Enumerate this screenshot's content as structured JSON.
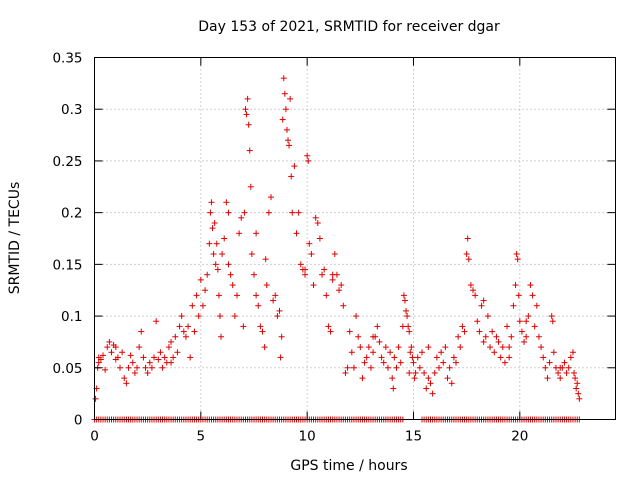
{
  "chart_data": {
    "type": "scatter",
    "title": "Day 153 of 2021, SRMTID for receiver dgar",
    "xlabel": "GPS time / hours",
    "ylabel": "SRMTID / TECUs",
    "xlim": [
      0,
      24.5
    ],
    "ylim": [
      0,
      0.35
    ],
    "grid": true,
    "marker": "plus",
    "color": "#e00000",
    "x_ticks": [
      0,
      5,
      10,
      15,
      20
    ],
    "y_ticks": [
      0,
      0.05,
      0.1,
      0.15,
      0.2,
      0.25,
      0.3,
      0.35
    ],
    "x_tick_labels": [
      "0",
      "5",
      "10",
      "15",
      "20"
    ],
    "y_tick_labels": [
      "0",
      "0.05",
      "0.1",
      "0.15",
      "0.2",
      "0.25",
      "0.3",
      "0.35"
    ],
    "zero_band": {
      "start": 0,
      "end": 22.8,
      "gap": [
        14.5,
        15.3
      ],
      "step": 0.1,
      "value": 0
    },
    "series": [
      {
        "name": "SRMTID",
        "points": [
          [
            0.05,
            0.02
          ],
          [
            0.1,
            0.03
          ],
          [
            0.15,
            0.05
          ],
          [
            0.2,
            0.06
          ],
          [
            0.3,
            0.058
          ],
          [
            0.4,
            0.062
          ],
          [
            0.5,
            0.048
          ],
          [
            0.6,
            0.07
          ],
          [
            0.7,
            0.075
          ],
          [
            0.8,
            0.065
          ],
          [
            0.9,
            0.072
          ],
          [
            1.0,
            0.058
          ],
          [
            1.1,
            0.06
          ],
          [
            1.2,
            0.05
          ],
          [
            1.3,
            0.065
          ],
          [
            1.4,
            0.04
          ],
          [
            1.5,
            0.035
          ],
          [
            1.6,
            0.05
          ],
          [
            1.7,
            0.062
          ],
          [
            1.8,
            0.055
          ],
          [
            1.9,
            0.045
          ],
          [
            2.0,
            0.05
          ],
          [
            2.1,
            0.07
          ],
          [
            2.2,
            0.085
          ],
          [
            2.3,
            0.06
          ],
          [
            2.4,
            0.05
          ],
          [
            2.5,
            0.045
          ],
          [
            2.6,
            0.055
          ],
          [
            2.7,
            0.05
          ],
          [
            2.8,
            0.06
          ],
          [
            2.9,
            0.095
          ],
          [
            3.0,
            0.058
          ],
          [
            3.1,
            0.065
          ],
          [
            3.2,
            0.05
          ],
          [
            3.3,
            0.06
          ],
          [
            3.4,
            0.055
          ],
          [
            3.5,
            0.07
          ],
          [
            3.6,
            0.075
          ],
          [
            3.7,
            0.06
          ],
          [
            3.8,
            0.08
          ],
          [
            3.9,
            0.065
          ],
          [
            4.0,
            0.09
          ],
          [
            4.1,
            0.1
          ],
          [
            4.2,
            0.085
          ],
          [
            4.3,
            0.08
          ],
          [
            4.4,
            0.09
          ],
          [
            4.5,
            0.06
          ],
          [
            4.6,
            0.11
          ],
          [
            4.7,
            0.085
          ],
          [
            4.8,
            0.12
          ],
          [
            4.9,
            0.1
          ],
          [
            5.0,
            0.135
          ],
          [
            5.1,
            0.11
          ],
          [
            5.2,
            0.125
          ],
          [
            5.3,
            0.14
          ],
          [
            5.4,
            0.17
          ],
          [
            5.45,
            0.2
          ],
          [
            5.5,
            0.21
          ],
          [
            5.55,
            0.185
          ],
          [
            5.6,
            0.16
          ],
          [
            5.65,
            0.19
          ],
          [
            5.7,
            0.15
          ],
          [
            5.75,
            0.17
          ],
          [
            5.8,
            0.145
          ],
          [
            5.85,
            0.12
          ],
          [
            5.9,
            0.1
          ],
          [
            5.95,
            0.08
          ],
          [
            6.0,
            0.16
          ],
          [
            6.1,
            0.175
          ],
          [
            6.2,
            0.21
          ],
          [
            6.3,
            0.15
          ],
          [
            6.4,
            0.14
          ],
          [
            6.5,
            0.13
          ],
          [
            6.6,
            0.1
          ],
          [
            6.7,
            0.12
          ],
          [
            6.8,
            0.18
          ],
          [
            6.9,
            0.195
          ],
          [
            7.0,
            0.09
          ],
          [
            7.05,
            0.2
          ],
          [
            7.1,
            0.3
          ],
          [
            7.15,
            0.295
          ],
          [
            7.2,
            0.31
          ],
          [
            7.25,
            0.285
          ],
          [
            7.3,
            0.26
          ],
          [
            7.35,
            0.225
          ],
          [
            7.4,
            0.16
          ],
          [
            7.5,
            0.14
          ],
          [
            7.6,
            0.12
          ],
          [
            7.7,
            0.11
          ],
          [
            7.8,
            0.09
          ],
          [
            7.9,
            0.085
          ],
          [
            8.0,
            0.07
          ],
          [
            8.05,
            0.155
          ],
          [
            8.1,
            0.13
          ],
          [
            8.2,
            0.2
          ],
          [
            8.3,
            0.215
          ],
          [
            8.4,
            0.115
          ],
          [
            8.5,
            0.12
          ],
          [
            8.6,
            0.1
          ],
          [
            8.7,
            0.105
          ],
          [
            8.75,
            0.06
          ],
          [
            8.8,
            0.08
          ],
          [
            8.85,
            0.29
          ],
          [
            8.9,
            0.33
          ],
          [
            8.95,
            0.315
          ],
          [
            9.0,
            0.3
          ],
          [
            9.05,
            0.28
          ],
          [
            9.1,
            0.27
          ],
          [
            9.15,
            0.265
          ],
          [
            9.2,
            0.31
          ],
          [
            9.25,
            0.235
          ],
          [
            9.3,
            0.2
          ],
          [
            9.4,
            0.245
          ],
          [
            9.5,
            0.18
          ],
          [
            9.6,
            0.2
          ],
          [
            9.7,
            0.15
          ],
          [
            9.8,
            0.145
          ],
          [
            9.9,
            0.14
          ],
          [
            10.0,
            0.255
          ],
          [
            10.05,
            0.25
          ],
          [
            10.1,
            0.17
          ],
          [
            10.2,
            0.16
          ],
          [
            10.3,
            0.13
          ],
          [
            10.4,
            0.195
          ],
          [
            10.5,
            0.19
          ],
          [
            10.6,
            0.175
          ],
          [
            10.7,
            0.14
          ],
          [
            10.8,
            0.145
          ],
          [
            10.9,
            0.12
          ],
          [
            11.0,
            0.09
          ],
          [
            11.1,
            0.085
          ],
          [
            11.2,
            0.135
          ],
          [
            11.3,
            0.16
          ],
          [
            11.4,
            0.14
          ],
          [
            11.5,
            0.125
          ],
          [
            11.6,
            0.13
          ],
          [
            11.7,
            0.11
          ],
          [
            11.8,
            0.045
          ],
          [
            11.9,
            0.05
          ],
          [
            12.0,
            0.085
          ],
          [
            12.1,
            0.065
          ],
          [
            12.2,
            0.05
          ],
          [
            12.3,
            0.1
          ],
          [
            12.4,
            0.08
          ],
          [
            12.5,
            0.07
          ],
          [
            12.6,
            0.04
          ],
          [
            12.7,
            0.055
          ],
          [
            12.8,
            0.06
          ],
          [
            12.9,
            0.07
          ],
          [
            13.0,
            0.05
          ],
          [
            13.1,
            0.065
          ],
          [
            13.2,
            0.08
          ],
          [
            13.3,
            0.09
          ],
          [
            13.4,
            0.075
          ],
          [
            13.5,
            0.06
          ],
          [
            13.6,
            0.055
          ],
          [
            13.7,
            0.07
          ],
          [
            13.8,
            0.05
          ],
          [
            13.9,
            0.065
          ],
          [
            14.0,
            0.04
          ],
          [
            14.05,
            0.03
          ],
          [
            14.1,
            0.06
          ],
          [
            14.2,
            0.05
          ],
          [
            14.3,
            0.07
          ],
          [
            14.4,
            0.055
          ],
          [
            14.5,
            0.09
          ],
          [
            14.55,
            0.12
          ],
          [
            14.6,
            0.115
          ],
          [
            14.65,
            0.105
          ],
          [
            14.7,
            0.1
          ],
          [
            14.75,
            0.09
          ],
          [
            14.8,
            0.085
          ],
          [
            14.85,
            0.065
          ],
          [
            14.9,
            0.07
          ],
          [
            14.95,
            0.06
          ],
          [
            15.0,
            0.055
          ],
          [
            15.05,
            0.04
          ],
          [
            15.1,
            0.045
          ],
          [
            15.2,
            0.06
          ],
          [
            15.3,
            0.05
          ],
          [
            15.4,
            0.065
          ],
          [
            15.5,
            0.045
          ],
          [
            15.6,
            0.03
          ],
          [
            15.7,
            0.04
          ],
          [
            15.8,
            0.035
          ],
          [
            15.9,
            0.025
          ],
          [
            16.0,
            0.045
          ],
          [
            16.1,
            0.06
          ],
          [
            16.2,
            0.05
          ],
          [
            16.3,
            0.065
          ],
          [
            16.4,
            0.055
          ],
          [
            16.5,
            0.07
          ],
          [
            16.6,
            0.04
          ],
          [
            16.7,
            0.05
          ],
          [
            16.8,
            0.035
          ],
          [
            16.9,
            0.06
          ],
          [
            17.0,
            0.055
          ],
          [
            17.1,
            0.08
          ],
          [
            17.2,
            0.07
          ],
          [
            17.3,
            0.09
          ],
          [
            17.4,
            0.085
          ],
          [
            17.5,
            0.16
          ],
          [
            17.55,
            0.175
          ],
          [
            17.6,
            0.155
          ],
          [
            17.7,
            0.13
          ],
          [
            17.8,
            0.125
          ],
          [
            17.9,
            0.12
          ],
          [
            18.0,
            0.095
          ],
          [
            18.1,
            0.085
          ],
          [
            18.2,
            0.11
          ],
          [
            18.3,
            0.075
          ],
          [
            18.4,
            0.08
          ],
          [
            18.5,
            0.1
          ],
          [
            18.6,
            0.07
          ],
          [
            18.7,
            0.085
          ],
          [
            18.8,
            0.065
          ],
          [
            18.9,
            0.08
          ],
          [
            19.0,
            0.075
          ],
          [
            19.1,
            0.06
          ],
          [
            19.2,
            0.07
          ],
          [
            19.3,
            0.055
          ],
          [
            19.4,
            0.09
          ],
          [
            19.5,
            0.07
          ],
          [
            19.6,
            0.08
          ],
          [
            19.7,
            0.11
          ],
          [
            19.8,
            0.13
          ],
          [
            19.85,
            0.16
          ],
          [
            19.9,
            0.155
          ],
          [
            19.95,
            0.12
          ],
          [
            20.0,
            0.095
          ],
          [
            20.1,
            0.085
          ],
          [
            20.2,
            0.075
          ],
          [
            20.3,
            0.08
          ],
          [
            20.4,
            0.1
          ],
          [
            20.5,
            0.13
          ],
          [
            20.6,
            0.12
          ],
          [
            20.7,
            0.09
          ],
          [
            20.8,
            0.11
          ],
          [
            20.9,
            0.08
          ],
          [
            21.0,
            0.07
          ],
          [
            21.1,
            0.06
          ],
          [
            21.2,
            0.05
          ],
          [
            21.3,
            0.04
          ],
          [
            21.4,
            0.055
          ],
          [
            21.5,
            0.1
          ],
          [
            21.55,
            0.095
          ],
          [
            21.6,
            0.065
          ],
          [
            21.7,
            0.05
          ],
          [
            21.8,
            0.045
          ],
          [
            21.9,
            0.04
          ],
          [
            22.0,
            0.05
          ],
          [
            22.1,
            0.055
          ],
          [
            22.2,
            0.045
          ],
          [
            22.3,
            0.05
          ],
          [
            22.4,
            0.06
          ],
          [
            22.5,
            0.065
          ],
          [
            22.55,
            0.045
          ],
          [
            22.6,
            0.04
          ],
          [
            22.65,
            0.03
          ],
          [
            22.7,
            0.035
          ],
          [
            22.75,
            0.025
          ],
          [
            22.8,
            0.02
          ],
          [
            0.2,
            0.055
          ],
          [
            1.0,
            0.07
          ],
          [
            3.6,
            0.055
          ],
          [
            6.3,
            0.2
          ],
          [
            7.6,
            0.18
          ],
          [
            9.9,
            0.145
          ],
          [
            11.2,
            0.14
          ],
          [
            13.1,
            0.08
          ],
          [
            14.8,
            0.045
          ],
          [
            15.7,
            0.07
          ],
          [
            18.3,
            0.115
          ],
          [
            19.5,
            0.06
          ],
          [
            20.3,
            0.095
          ],
          [
            21.9,
            0.05
          ]
        ]
      }
    ]
  }
}
